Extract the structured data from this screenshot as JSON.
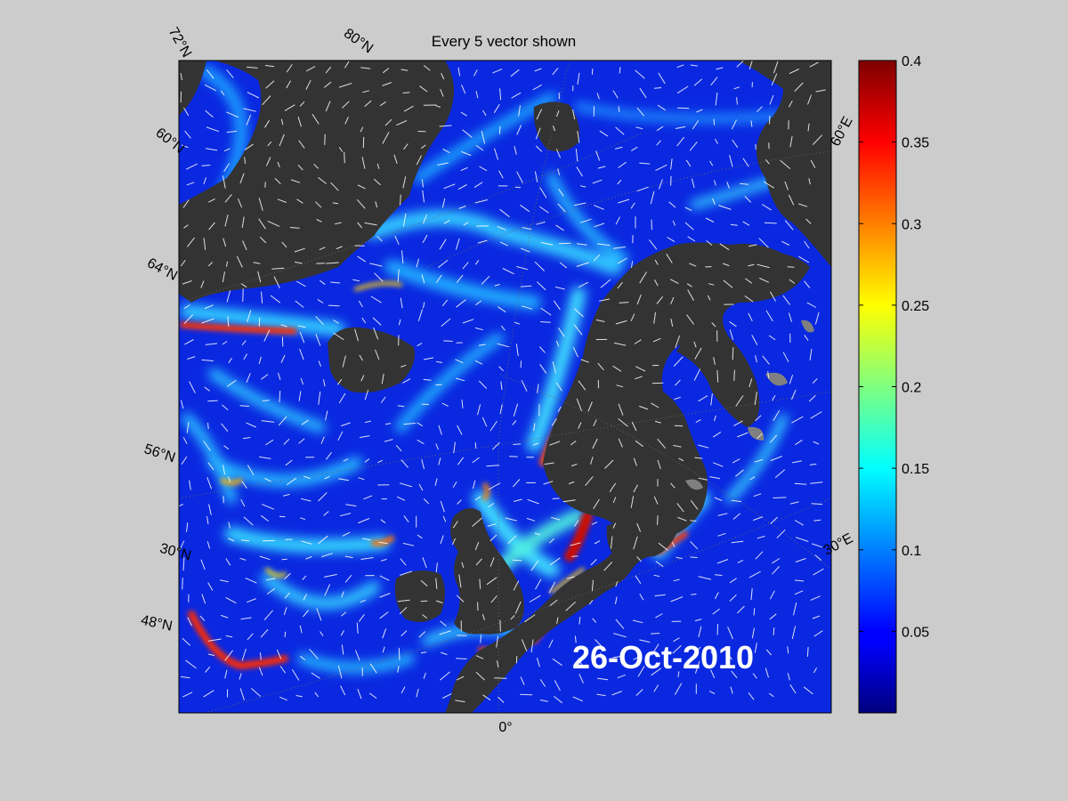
{
  "title": "Every 5 vector shown",
  "date_label": "26-Oct-2010",
  "map": {
    "lat_labels": [
      "72°N",
      "60°N",
      "64°N",
      "56°N",
      "30°N",
      "48°N"
    ],
    "lat_top_label": "80°N",
    "lon_labels": [
      "60°E",
      "30°E",
      "0°"
    ],
    "colors": {
      "ocean_deep": "#0a1fd6",
      "land": "#333333",
      "ice_land": "#808080",
      "vector": "#ffffff"
    }
  },
  "colorbar": {
    "min": 0,
    "max": 0.4,
    "ticks": [
      {
        "value": 0.4,
        "label": "0.4"
      },
      {
        "value": 0.35,
        "label": "0.35"
      },
      {
        "value": 0.3,
        "label": "0.3"
      },
      {
        "value": 0.25,
        "label": "0.25"
      },
      {
        "value": 0.2,
        "label": "0.2"
      },
      {
        "value": 0.15,
        "label": "0.15"
      },
      {
        "value": 0.1,
        "label": "0.1"
      },
      {
        "value": 0.05,
        "label": "0.05"
      }
    ],
    "colormap": "jet"
  }
}
